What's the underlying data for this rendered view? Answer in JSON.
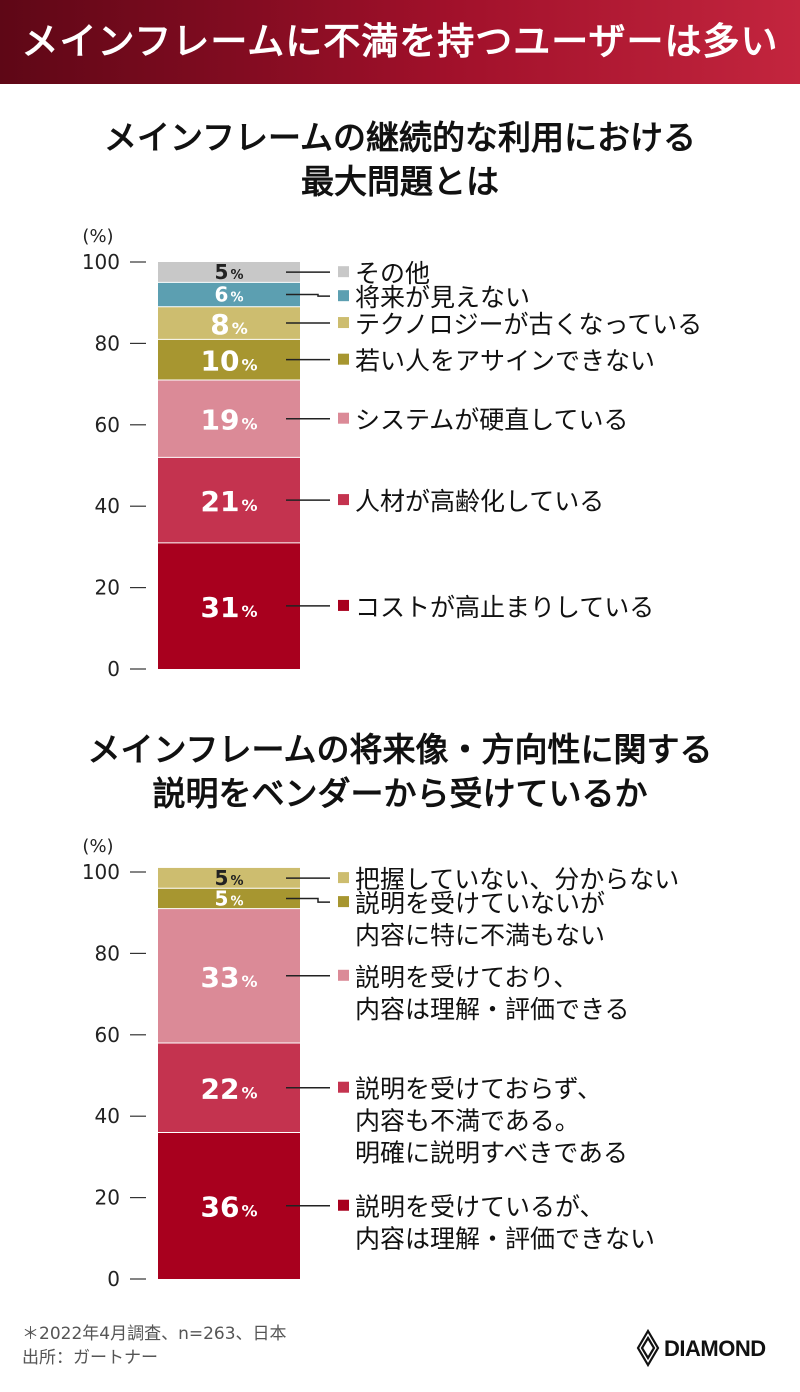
{
  "banner": {
    "title": "メインフレームに不満を持つユーザーは多い"
  },
  "charts": [
    {
      "title_lines": [
        "メインフレームの継続的な利用における",
        "最大問題とは"
      ]
    },
    {
      "title_lines": [
        "メインフレームの将来像・方向性に関する",
        "説明をベンダーから受けているか"
      ]
    }
  ],
  "chart_data": [
    {
      "type": "bar",
      "stacked": true,
      "ylabel": "(%)",
      "ylim": [
        0,
        100
      ],
      "yticks": [
        0,
        20,
        40,
        60,
        80,
        100
      ],
      "series": [
        {
          "name": "コストが高止まりしている",
          "value": 31,
          "color": "#a8001e",
          "label_lines": [
            "コストが高止まりしている"
          ]
        },
        {
          "name": "人材が高齢化している",
          "value": 21,
          "color": "#c4334f",
          "label_lines": [
            "人材が高齢化している"
          ]
        },
        {
          "name": "システムが硬直している",
          "value": 19,
          "color": "#db8a97",
          "label_lines": [
            "システムが硬直している"
          ]
        },
        {
          "name": "若い人をアサインできない",
          "value": 10,
          "color": "#a79630",
          "label_lines": [
            "若い人をアサインできない"
          ]
        },
        {
          "name": "テクノロジーが古くなっている",
          "value": 8,
          "color": "#cdbd6f",
          "label_lines": [
            "テクノロジーが古くなっている"
          ]
        },
        {
          "name": "将来が見えない",
          "value": 6,
          "color": "#5c9fb1",
          "label_lines": [
            "将来が見えない"
          ]
        },
        {
          "name": "その他",
          "value": 5,
          "color": "#c8c8c8",
          "label_lines": [
            "その他"
          ]
        }
      ]
    },
    {
      "type": "bar",
      "stacked": true,
      "ylabel": "(%)",
      "ylim": [
        0,
        100
      ],
      "yticks": [
        0,
        20,
        40,
        60,
        80,
        100
      ],
      "series": [
        {
          "name": "説明を受けているが、内容は理解・評価できない",
          "value": 36,
          "color": "#a8001e",
          "label_lines": [
            "説明を受けているが、",
            "内容は理解・評価できない"
          ]
        },
        {
          "name": "説明を受けておらず、内容も不満である。明確に説明すべきである",
          "value": 22,
          "color": "#c4334f",
          "label_lines": [
            "説明を受けておらず、",
            "内容も不満である。",
            "明確に説明すべきである"
          ]
        },
        {
          "name": "説明を受けており、内容は理解・評価できる",
          "value": 33,
          "color": "#db8a97",
          "label_lines": [
            "説明を受けており、",
            "内容は理解・評価できる"
          ]
        },
        {
          "name": "説明を受けていないが内容に特に不満もない",
          "value": 5,
          "color": "#a79630",
          "label_lines": [
            "説明を受けていないが",
            "内容に特に不満もない"
          ]
        },
        {
          "name": "把握していない、分からない",
          "value": 5,
          "color": "#cdbd6f",
          "label_lines": [
            "把握していない、分からない"
          ]
        }
      ]
    }
  ],
  "footnote": [
    "＊2022年4月調査、n=263、日本",
    "出所：ガートナー"
  ],
  "logo": {
    "text": "DIAMOND",
    "icon": "diamond-logo-icon"
  },
  "percent_sign": "%"
}
